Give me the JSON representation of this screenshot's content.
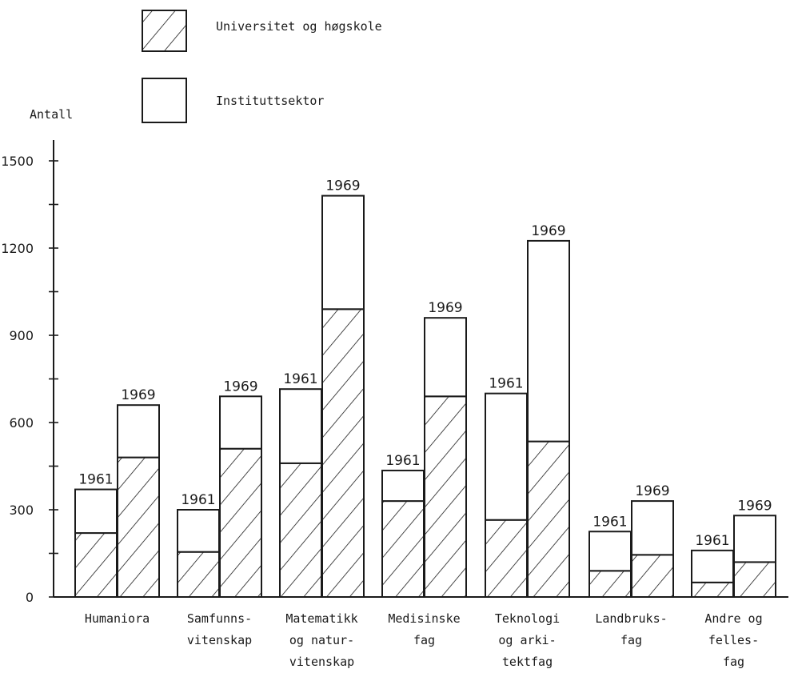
{
  "chart_data": {
    "type": "bar",
    "stacked": true,
    "ylabel": "Antall",
    "ylim": [
      0,
      1650
    ],
    "yticks": [
      0,
      300,
      600,
      900,
      1200,
      1500
    ],
    "ytick_labels": [
      "0",
      "300",
      "600",
      "900",
      "1200",
      "1500"
    ],
    "years": [
      "1961",
      "1969"
    ],
    "categories": [
      {
        "label_lines": [
          "Humaniora"
        ]
      },
      {
        "label_lines": [
          "Samfunns-",
          "vitenskap"
        ]
      },
      {
        "label_lines": [
          "Matematikk",
          "og natur-",
          "vitenskap"
        ]
      },
      {
        "label_lines": [
          "Medisinske",
          "fag"
        ]
      },
      {
        "label_lines": [
          "Teknologi",
          "og arki-",
          "tektfag"
        ]
      },
      {
        "label_lines": [
          "Landbruks-",
          "fag"
        ]
      },
      {
        "label_lines": [
          "Andre og",
          "felles-",
          "fag"
        ]
      }
    ],
    "series": [
      {
        "name": "Universitet og høgskole",
        "pattern": "hatched",
        "values_1961": [
          220,
          155,
          460,
          330,
          265,
          90,
          50
        ],
        "values_1969": [
          480,
          510,
          990,
          690,
          535,
          145,
          120
        ]
      },
      {
        "name": "Instituttsektor",
        "pattern": "empty",
        "values_1961": [
          150,
          145,
          255,
          105,
          435,
          135,
          110
        ],
        "values_1969": [
          180,
          180,
          390,
          270,
          690,
          185,
          160
        ]
      }
    ],
    "legend_position": "top",
    "colors": {
      "ink": "#1a1a1a",
      "background": "#ffffff"
    }
  }
}
